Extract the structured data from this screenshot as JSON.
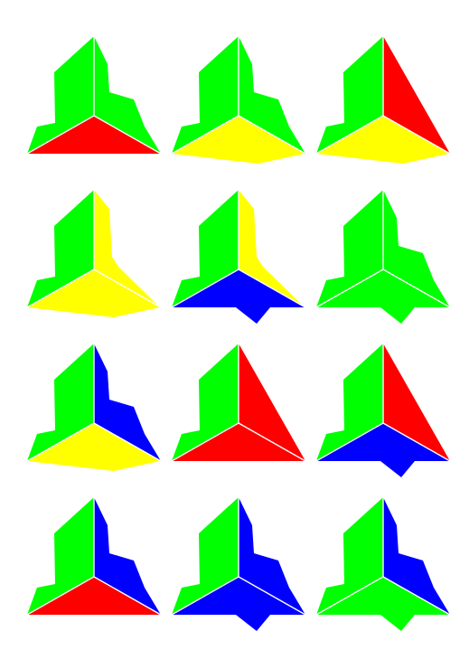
{
  "colors": {
    "green": "#00ff00",
    "red": "#ff0000",
    "yellow": "#ffff00",
    "blue": "#0000ff",
    "background": "#ffffff",
    "edge": "#ffffff"
  },
  "region_names": [
    "left",
    "right",
    "bottom"
  ],
  "shapes": [
    {
      "left": {
        "color": "green",
        "form": "notched"
      },
      "right": {
        "color": "green",
        "form": "notched"
      },
      "bottom": {
        "color": "red",
        "form": "flat"
      }
    },
    {
      "left": {
        "color": "green",
        "form": "notched"
      },
      "right": {
        "color": "green",
        "form": "notched"
      },
      "bottom": {
        "color": "yellow",
        "form": "extended"
      }
    },
    {
      "left": {
        "color": "green",
        "form": "notched"
      },
      "right": {
        "color": "red",
        "form": "flat"
      },
      "bottom": {
        "color": "yellow",
        "form": "extended"
      }
    },
    {
      "left": {
        "color": "green",
        "form": "notched"
      },
      "right": {
        "color": "yellow",
        "form": "extended"
      },
      "bottom": {
        "color": "yellow",
        "form": "extended"
      }
    },
    {
      "left": {
        "color": "green",
        "form": "notched"
      },
      "right": {
        "color": "yellow",
        "form": "extended"
      },
      "bottom": {
        "color": "blue",
        "form": "notched"
      }
    },
    {
      "left": {
        "color": "green",
        "form": "notched"
      },
      "right": {
        "color": "green",
        "form": "notched"
      },
      "bottom": {
        "color": "green",
        "form": "notched"
      }
    },
    {
      "left": {
        "color": "green",
        "form": "notched"
      },
      "right": {
        "color": "blue",
        "form": "notched"
      },
      "bottom": {
        "color": "yellow",
        "form": "extended"
      }
    },
    {
      "left": {
        "color": "green",
        "form": "notched"
      },
      "right": {
        "color": "red",
        "form": "flat"
      },
      "bottom": {
        "color": "red",
        "form": "flat"
      }
    },
    {
      "left": {
        "color": "green",
        "form": "notched"
      },
      "right": {
        "color": "red",
        "form": "flat"
      },
      "bottom": {
        "color": "blue",
        "form": "notched"
      }
    },
    {
      "left": {
        "color": "green",
        "form": "notched"
      },
      "right": {
        "color": "blue",
        "form": "notched"
      },
      "bottom": {
        "color": "red",
        "form": "flat"
      }
    },
    {
      "left": {
        "color": "green",
        "form": "notched"
      },
      "right": {
        "color": "blue",
        "form": "notched"
      },
      "bottom": {
        "color": "blue",
        "form": "notched"
      }
    },
    {
      "left": {
        "color": "green",
        "form": "notched"
      },
      "right": {
        "color": "blue",
        "form": "notched"
      },
      "bottom": {
        "color": "green",
        "form": "notched"
      }
    }
  ]
}
